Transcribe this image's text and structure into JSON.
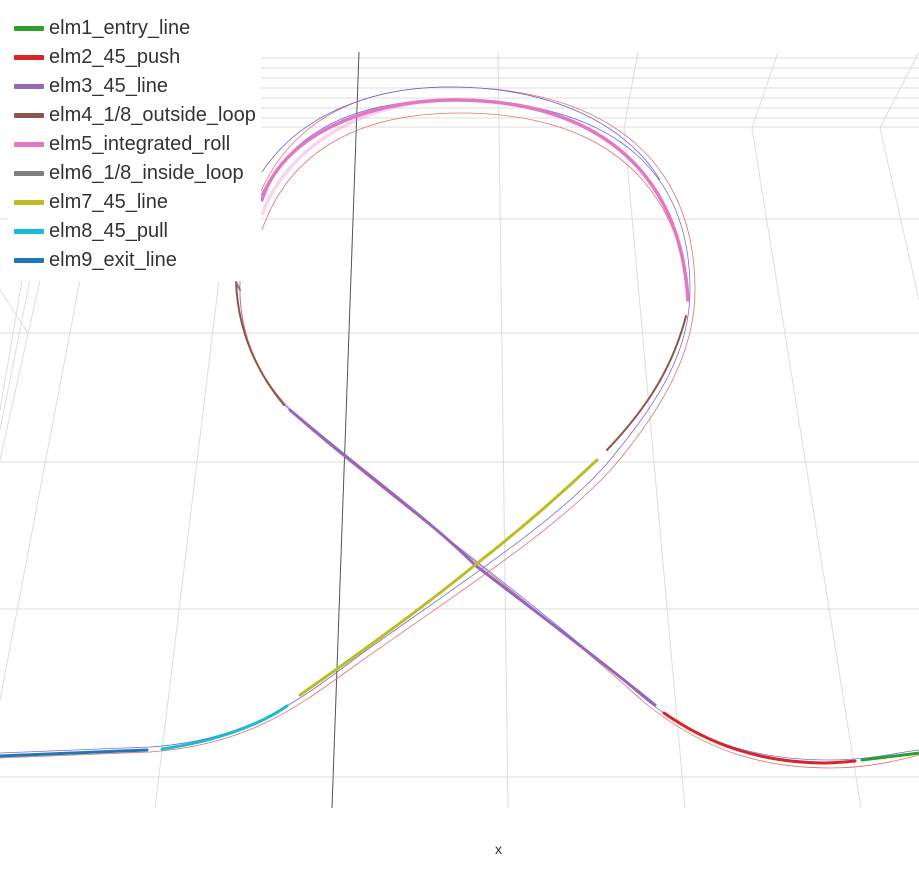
{
  "chart_data": {
    "type": "line",
    "title": "",
    "xlabel": "x",
    "ylabel": "",
    "grid": true,
    "legend_position": "top-left",
    "series": [
      {
        "name": "elm1_entry_line",
        "color": "#2ca02c"
      },
      {
        "name": "elm2_45_push",
        "color": "#d62728"
      },
      {
        "name": "elm3_45_line",
        "color": "#9467bd"
      },
      {
        "name": "elm4_1/8_outside_loop",
        "color": "#8c564b"
      },
      {
        "name": "elm5_integrated_roll",
        "color": "#e377c2"
      },
      {
        "name": "elm6_1/8_inside_loop",
        "color": "#7f7f7f"
      },
      {
        "name": "elm7_45_line",
        "color": "#bcbd22"
      },
      {
        "name": "elm8_45_pull",
        "color": "#17becf"
      },
      {
        "name": "elm9_exit_line",
        "color": "#1f77b4"
      }
    ]
  }
}
